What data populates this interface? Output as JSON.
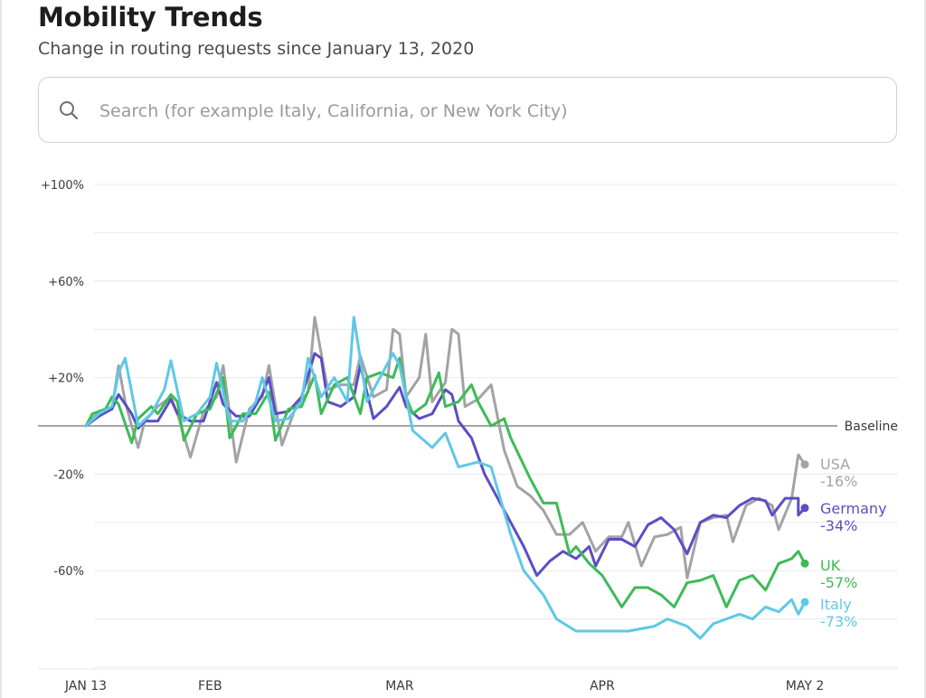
{
  "header": {
    "title": "Mobility Trends",
    "subtitle": "Change in routing requests since January 13, 2020"
  },
  "search": {
    "placeholder": "Search (for example Italy, California, or New York City)",
    "value": "",
    "icon": "search-icon"
  },
  "colors": {
    "grid": "#e9e9ec",
    "baseline": "#6e6e73",
    "axis_text": "#3a3a3c"
  },
  "chart_data": {
    "type": "line",
    "x_type": "date",
    "x_start": "2020-01-13",
    "x_end": "2020-05-02",
    "ylim": [
      -100,
      100
    ],
    "y_ticks": [
      {
        "value": 100,
        "label": "+100%"
      },
      {
        "value": 60,
        "label": "+60%"
      },
      {
        "value": 20,
        "label": "+20%"
      },
      {
        "value": -20,
        "label": "-20%"
      },
      {
        "value": -60,
        "label": "-60%"
      }
    ],
    "x_ticks": [
      {
        "date": "2020-01-13",
        "label": "JAN 13"
      },
      {
        "date": "2020-02-01",
        "label": "FEB"
      },
      {
        "date": "2020-03-01",
        "label": "MAR"
      },
      {
        "date": "2020-04-01",
        "label": "APR"
      },
      {
        "date": "2020-05-02",
        "label": "MAY 2"
      }
    ],
    "baseline": {
      "value": 0,
      "label": "Baseline"
    },
    "grid": true,
    "series": [
      {
        "name": "USA",
        "color": "#a3a3a6",
        "final_label": "-16%",
        "points": [
          [
            "2020-01-13",
            0
          ],
          [
            "2020-01-15",
            6
          ],
          [
            "2020-01-17",
            7
          ],
          [
            "2020-01-18",
            25
          ],
          [
            "2020-01-19",
            10
          ],
          [
            "2020-01-20",
            0
          ],
          [
            "2020-01-21",
            -9
          ],
          [
            "2020-01-22",
            2
          ],
          [
            "2020-01-24",
            8
          ],
          [
            "2020-01-26",
            12
          ],
          [
            "2020-01-27",
            5
          ],
          [
            "2020-01-29",
            -13
          ],
          [
            "2020-01-31",
            6
          ],
          [
            "2020-02-02",
            12
          ],
          [
            "2020-02-03",
            25
          ],
          [
            "2020-02-05",
            -15
          ],
          [
            "2020-02-07",
            7
          ],
          [
            "2020-02-09",
            12
          ],
          [
            "2020-02-10",
            25
          ],
          [
            "2020-02-12",
            -8
          ],
          [
            "2020-02-14",
            7
          ],
          [
            "2020-02-16",
            14
          ],
          [
            "2020-02-17",
            45
          ],
          [
            "2020-02-19",
            15
          ],
          [
            "2020-02-21",
            17
          ],
          [
            "2020-02-23",
            17
          ],
          [
            "2020-02-24",
            29
          ],
          [
            "2020-02-26",
            12
          ],
          [
            "2020-02-28",
            15
          ],
          [
            "2020-02-29",
            40
          ],
          [
            "2020-03-01",
            38
          ],
          [
            "2020-03-02",
            12
          ],
          [
            "2020-03-04",
            20
          ],
          [
            "2020-03-05",
            38
          ],
          [
            "2020-03-06",
            10
          ],
          [
            "2020-03-08",
            18
          ],
          [
            "2020-03-09",
            40
          ],
          [
            "2020-03-10",
            38
          ],
          [
            "2020-03-11",
            8
          ],
          [
            "2020-03-13",
            11
          ],
          [
            "2020-03-15",
            17
          ],
          [
            "2020-03-17",
            -10
          ],
          [
            "2020-03-19",
            -25
          ],
          [
            "2020-03-21",
            -29
          ],
          [
            "2020-03-23",
            -35
          ],
          [
            "2020-03-25",
            -45
          ],
          [
            "2020-03-27",
            -45
          ],
          [
            "2020-03-29",
            -40
          ],
          [
            "2020-03-31",
            -52
          ],
          [
            "2020-04-02",
            -46
          ],
          [
            "2020-04-04",
            -46
          ],
          [
            "2020-04-05",
            -40
          ],
          [
            "2020-04-07",
            -58
          ],
          [
            "2020-04-09",
            -46
          ],
          [
            "2020-04-11",
            -45
          ],
          [
            "2020-04-13",
            -42
          ],
          [
            "2020-04-14",
            -63
          ],
          [
            "2020-04-16",
            -40
          ],
          [
            "2020-04-18",
            -38
          ],
          [
            "2020-04-20",
            -37
          ],
          [
            "2020-04-21",
            -48
          ],
          [
            "2020-04-23",
            -33
          ],
          [
            "2020-04-25",
            -30
          ],
          [
            "2020-04-27",
            -33
          ],
          [
            "2020-04-28",
            -43
          ],
          [
            "2020-04-30",
            -30
          ],
          [
            "2020-05-01",
            -12
          ],
          [
            "2020-05-02",
            -16
          ]
        ]
      },
      {
        "name": "Germany",
        "color": "#5b4ec4",
        "final_label": "-34%",
        "points": [
          [
            "2020-01-13",
            0
          ],
          [
            "2020-01-15",
            4
          ],
          [
            "2020-01-17",
            7
          ],
          [
            "2020-01-18",
            13
          ],
          [
            "2020-01-20",
            5
          ],
          [
            "2020-01-21",
            -1
          ],
          [
            "2020-01-22",
            2
          ],
          [
            "2020-01-24",
            2
          ],
          [
            "2020-01-26",
            11
          ],
          [
            "2020-01-27",
            5
          ],
          [
            "2020-01-29",
            2
          ],
          [
            "2020-01-31",
            2
          ],
          [
            "2020-02-02",
            18
          ],
          [
            "2020-02-03",
            9
          ],
          [
            "2020-02-05",
            4
          ],
          [
            "2020-02-07",
            4
          ],
          [
            "2020-02-09",
            13
          ],
          [
            "2020-02-10",
            20
          ],
          [
            "2020-02-11",
            5
          ],
          [
            "2020-02-13",
            6
          ],
          [
            "2020-02-15",
            12
          ],
          [
            "2020-02-17",
            30
          ],
          [
            "2020-02-18",
            28
          ],
          [
            "2020-02-19",
            10
          ],
          [
            "2020-02-21",
            8
          ],
          [
            "2020-02-23",
            12
          ],
          [
            "2020-02-24",
            25
          ],
          [
            "2020-02-26",
            3
          ],
          [
            "2020-02-28",
            8
          ],
          [
            "2020-03-01",
            16
          ],
          [
            "2020-03-02",
            8
          ],
          [
            "2020-03-04",
            3
          ],
          [
            "2020-03-06",
            5
          ],
          [
            "2020-03-08",
            15
          ],
          [
            "2020-03-09",
            13
          ],
          [
            "2020-03-10",
            2
          ],
          [
            "2020-03-12",
            -5
          ],
          [
            "2020-03-14",
            -20
          ],
          [
            "2020-03-16",
            -30
          ],
          [
            "2020-03-18",
            -40
          ],
          [
            "2020-03-20",
            -50
          ],
          [
            "2020-03-22",
            -62
          ],
          [
            "2020-03-24",
            -56
          ],
          [
            "2020-03-26",
            -52
          ],
          [
            "2020-03-28",
            -55
          ],
          [
            "2020-03-30",
            -50
          ],
          [
            "2020-03-31",
            -58
          ],
          [
            "2020-04-02",
            -47
          ],
          [
            "2020-04-04",
            -47
          ],
          [
            "2020-04-06",
            -50
          ],
          [
            "2020-04-08",
            -41
          ],
          [
            "2020-04-10",
            -38
          ],
          [
            "2020-04-12",
            -43
          ],
          [
            "2020-04-14",
            -53
          ],
          [
            "2020-04-16",
            -40
          ],
          [
            "2020-04-18",
            -37
          ],
          [
            "2020-04-20",
            -38
          ],
          [
            "2020-04-22",
            -33
          ],
          [
            "2020-04-24",
            -30
          ],
          [
            "2020-04-26",
            -31
          ],
          [
            "2020-04-27",
            -37
          ],
          [
            "2020-04-29",
            -30
          ],
          [
            "2020-05-01",
            -30
          ],
          [
            "2020-05-01",
            -37
          ],
          [
            "2020-05-02",
            -34
          ]
        ]
      },
      {
        "name": "UK",
        "color": "#3dbb57",
        "final_label": "-57%",
        "points": [
          [
            "2020-01-13",
            0
          ],
          [
            "2020-01-14",
            5
          ],
          [
            "2020-01-16",
            7
          ],
          [
            "2020-01-17",
            12
          ],
          [
            "2020-01-18",
            9
          ],
          [
            "2020-01-20",
            -7
          ],
          [
            "2020-01-21",
            3
          ],
          [
            "2020-01-23",
            8
          ],
          [
            "2020-01-24",
            5
          ],
          [
            "2020-01-26",
            13
          ],
          [
            "2020-01-27",
            10
          ],
          [
            "2020-01-28",
            -6
          ],
          [
            "2020-01-30",
            5
          ],
          [
            "2020-02-01",
            7
          ],
          [
            "2020-02-03",
            20
          ],
          [
            "2020-02-04",
            -5
          ],
          [
            "2020-02-06",
            5
          ],
          [
            "2020-02-08",
            5
          ],
          [
            "2020-02-10",
            14
          ],
          [
            "2020-02-11",
            -6
          ],
          [
            "2020-02-13",
            7
          ],
          [
            "2020-02-15",
            8
          ],
          [
            "2020-02-17",
            21
          ],
          [
            "2020-02-18",
            5
          ],
          [
            "2020-02-20",
            17
          ],
          [
            "2020-02-22",
            20
          ],
          [
            "2020-02-24",
            5
          ],
          [
            "2020-02-25",
            20
          ],
          [
            "2020-02-27",
            22
          ],
          [
            "2020-02-29",
            20
          ],
          [
            "2020-03-01",
            28
          ],
          [
            "2020-03-02",
            12
          ],
          [
            "2020-03-03",
            5
          ],
          [
            "2020-03-05",
            9
          ],
          [
            "2020-03-07",
            22
          ],
          [
            "2020-03-08",
            8
          ],
          [
            "2020-03-10",
            10
          ],
          [
            "2020-03-12",
            17
          ],
          [
            "2020-03-13",
            10
          ],
          [
            "2020-03-15",
            0
          ],
          [
            "2020-03-17",
            3
          ],
          [
            "2020-03-18",
            -5
          ],
          [
            "2020-03-21",
            -22
          ],
          [
            "2020-03-23",
            -32
          ],
          [
            "2020-03-25",
            -32
          ],
          [
            "2020-03-27",
            -53
          ],
          [
            "2020-03-28",
            -50
          ],
          [
            "2020-03-30",
            -57
          ],
          [
            "2020-04-01",
            -62
          ],
          [
            "2020-04-04",
            -75
          ],
          [
            "2020-04-06",
            -67
          ],
          [
            "2020-04-08",
            -67
          ],
          [
            "2020-04-10",
            -70
          ],
          [
            "2020-04-12",
            -75
          ],
          [
            "2020-04-14",
            -65
          ],
          [
            "2020-04-16",
            -64
          ],
          [
            "2020-04-18",
            -62
          ],
          [
            "2020-04-20",
            -75
          ],
          [
            "2020-04-22",
            -64
          ],
          [
            "2020-04-24",
            -62
          ],
          [
            "2020-04-26",
            -68
          ],
          [
            "2020-04-28",
            -57
          ],
          [
            "2020-04-30",
            -55
          ],
          [
            "2020-05-01",
            -52
          ],
          [
            "2020-05-02",
            -57
          ]
        ]
      },
      {
        "name": "Italy",
        "color": "#5ec8e6",
        "final_label": "-73%",
        "points": [
          [
            "2020-01-13",
            0
          ],
          [
            "2020-01-15",
            5
          ],
          [
            "2020-01-17",
            8
          ],
          [
            "2020-01-18",
            22
          ],
          [
            "2020-01-19",
            28
          ],
          [
            "2020-01-21",
            0
          ],
          [
            "2020-01-23",
            5
          ],
          [
            "2020-01-25",
            15
          ],
          [
            "2020-01-26",
            27
          ],
          [
            "2020-01-28",
            2
          ],
          [
            "2020-01-30",
            5
          ],
          [
            "2020-02-01",
            12
          ],
          [
            "2020-02-02",
            26
          ],
          [
            "2020-02-04",
            2
          ],
          [
            "2020-02-06",
            2
          ],
          [
            "2020-02-08",
            10
          ],
          [
            "2020-02-09",
            20
          ],
          [
            "2020-02-11",
            2
          ],
          [
            "2020-02-13",
            3
          ],
          [
            "2020-02-15",
            10
          ],
          [
            "2020-02-16",
            28
          ],
          [
            "2020-02-18",
            12
          ],
          [
            "2020-02-20",
            20
          ],
          [
            "2020-02-22",
            10
          ],
          [
            "2020-02-23",
            45
          ],
          [
            "2020-02-25",
            10
          ],
          [
            "2020-02-27",
            20
          ],
          [
            "2020-02-29",
            30
          ],
          [
            "2020-03-01",
            25
          ],
          [
            "2020-03-02",
            12
          ],
          [
            "2020-03-03",
            -2
          ],
          [
            "2020-03-06",
            -9
          ],
          [
            "2020-03-08",
            -3
          ],
          [
            "2020-03-10",
            -17
          ],
          [
            "2020-03-13",
            -15
          ],
          [
            "2020-03-15",
            -17
          ],
          [
            "2020-03-18",
            -45
          ],
          [
            "2020-03-20",
            -60
          ],
          [
            "2020-03-23",
            -70
          ],
          [
            "2020-03-25",
            -80
          ],
          [
            "2020-03-28",
            -85
          ],
          [
            "2020-04-01",
            -85
          ],
          [
            "2020-04-05",
            -85
          ],
          [
            "2020-04-09",
            -83
          ],
          [
            "2020-04-11",
            -80
          ],
          [
            "2020-04-14",
            -83
          ],
          [
            "2020-04-16",
            -88
          ],
          [
            "2020-04-18",
            -82
          ],
          [
            "2020-04-20",
            -80
          ],
          [
            "2020-04-22",
            -78
          ],
          [
            "2020-04-24",
            -80
          ],
          [
            "2020-04-26",
            -75
          ],
          [
            "2020-04-28",
            -77
          ],
          [
            "2020-04-30",
            -72
          ],
          [
            "2020-05-01",
            -78
          ],
          [
            "2020-05-02",
            -73
          ]
        ]
      }
    ]
  }
}
